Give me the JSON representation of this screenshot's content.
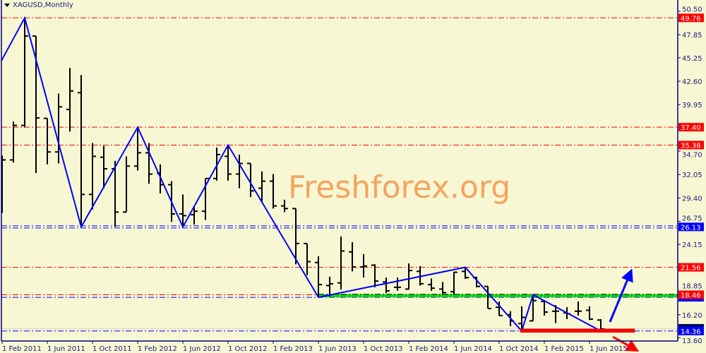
{
  "header": {
    "symbol_timeframe": "XAGUSD,Monthly"
  },
  "watermark": "Freshforex.org",
  "colors": {
    "background": "#f7f7d3",
    "axis": "#000080",
    "bars": "#000000",
    "zigzag": "#0000ff",
    "resistance": "#ff0000",
    "support": "#0000ff",
    "trendline": "#00e000"
  },
  "chart_data": {
    "type": "ohlc",
    "symbol": "XAGUSD",
    "timeframe": "Monthly",
    "ylim": [
      13.6,
      50.5
    ],
    "y_ticks": [
      "50.50",
      "47.85",
      "45.25",
      "42.60",
      "39.95",
      "34.70",
      "32.05",
      "29.40",
      "26.75",
      "24.15",
      "18.85",
      "16.20",
      "13.60"
    ],
    "x_ticks": [
      "1 Feb 2011",
      "1 Jun 2011",
      "1 Oct 2011",
      "1 Feb 2012",
      "1 Jun 2012",
      "1 Oct 2012",
      "1 Feb 2013",
      "1 Jun 2013",
      "1 Oct 2013",
      "1 Feb 2014",
      "1 Jun 2014",
      "1 Oct 2014",
      "1 Feb 2015",
      "1 Jun 2015"
    ],
    "bars": [
      [
        "2011-02",
        28.2,
        34.2,
        27.7,
        33.7
      ],
      [
        "2011-03",
        33.7,
        38.05,
        33.4,
        37.6
      ],
      [
        "2011-04",
        37.6,
        49.76,
        37.4,
        47.7
      ],
      [
        "2011-05",
        47.7,
        47.7,
        32.2,
        38.45
      ],
      [
        "2011-06",
        38.4,
        38.4,
        33.2,
        34.6
      ],
      [
        "2011-07",
        34.6,
        41.2,
        33.3,
        39.7
      ],
      [
        "2011-08",
        39.4,
        44.1,
        36.9,
        41.5
      ],
      [
        "2011-09",
        41.3,
        43.3,
        26.13,
        29.8
      ],
      [
        "2011-10",
        29.8,
        35.6,
        28.1,
        34.1
      ],
      [
        "2011-11",
        34.0,
        35.3,
        30.5,
        32.7
      ],
      [
        "2011-12",
        32.7,
        33.6,
        26.13,
        27.8
      ],
      [
        "2012-01",
        27.8,
        34.1,
        27.8,
        33.0
      ],
      [
        "2012-02",
        33.0,
        37.4,
        32.5,
        34.5
      ],
      [
        "2012-03",
        34.5,
        35.6,
        31.0,
        32.1
      ],
      [
        "2012-04",
        32.2,
        33.2,
        29.9,
        30.9
      ],
      [
        "2012-05",
        30.9,
        31.3,
        26.7,
        27.6
      ],
      [
        "2012-06",
        27.6,
        29.8,
        26.13,
        27.4
      ],
      [
        "2012-07",
        27.5,
        28.4,
        26.4,
        27.9
      ],
      [
        "2012-08",
        27.9,
        31.6,
        26.9,
        31.6
      ],
      [
        "2012-09",
        31.6,
        35.1,
        31.35,
        34.3
      ],
      [
        "2012-10",
        34.1,
        35.38,
        31.35,
        32.1
      ],
      [
        "2012-11",
        32.1,
        34.3,
        30.5,
        33.3
      ],
      [
        "2012-12",
        33.3,
        33.3,
        29.5,
        30.2
      ],
      [
        "2013-01",
        30.5,
        32.4,
        29.0,
        31.3
      ],
      [
        "2013-02",
        31.3,
        32.1,
        28.2,
        28.5
      ],
      [
        "2013-03",
        28.5,
        29.2,
        27.8,
        28.2
      ],
      [
        "2013-04",
        28.2,
        28.2,
        21.9,
        24.25
      ],
      [
        "2013-05",
        24.25,
        24.25,
        20.65,
        22.2
      ],
      [
        "2013-06",
        22.1,
        22.8,
        18.2,
        19.6
      ],
      [
        "2013-07",
        19.5,
        20.5,
        18.25,
        19.7
      ],
      [
        "2013-08",
        19.8,
        25.05,
        19.05,
        23.4
      ],
      [
        "2013-09",
        23.3,
        24.4,
        21.1,
        21.6
      ],
      [
        "2013-10",
        21.6,
        23.05,
        20.4,
        21.7
      ],
      [
        "2013-11",
        21.8,
        21.9,
        19.3,
        20.0
      ],
      [
        "2013-12",
        19.9,
        20.4,
        18.65,
        18.9
      ],
      [
        "2014-01",
        19.3,
        20.4,
        18.9,
        19.3
      ],
      [
        "2014-02",
        19.1,
        22.0,
        19.05,
        21.2
      ],
      [
        "2014-03",
        21.1,
        21.7,
        19.5,
        19.7
      ],
      [
        "2014-04",
        19.6,
        20.3,
        18.9,
        19.2
      ],
      [
        "2014-05",
        19.1,
        19.9,
        18.5,
        18.7
      ],
      [
        "2014-06",
        18.8,
        21.05,
        18.5,
        21.0
      ],
      [
        "2014-07",
        21.1,
        21.56,
        20.25,
        20.4
      ],
      [
        "2014-08",
        20.4,
        20.5,
        19.3,
        19.4
      ],
      [
        "2014-09",
        19.4,
        19.4,
        16.9,
        16.9
      ],
      [
        "2014-10",
        17.05,
        17.7,
        16.1,
        16.1
      ],
      [
        "2014-11",
        16.2,
        16.6,
        14.9,
        15.5
      ],
      [
        "2014-12",
        15.2,
        17.15,
        14.4,
        15.9
      ],
      [
        "2015-01",
        15.5,
        18.46,
        15.5,
        17.8
      ],
      [
        "2015-02",
        17.7,
        17.85,
        16.1,
        16.5
      ],
      [
        "2015-03",
        16.6,
        17.3,
        15.25,
        16.6
      ],
      [
        "2015-04",
        16.4,
        17.05,
        15.7,
        16.3
      ],
      [
        "2015-05",
        16.6,
        17.7,
        16.1,
        16.6
      ],
      [
        "2015-06",
        16.7,
        17.15,
        15.6,
        15.7
      ],
      [
        "2015-07",
        15.6,
        15.7,
        14.4,
        14.6
      ]
    ],
    "zigzag": [
      [
        "2011-01",
        42.7
      ],
      [
        "2011-04",
        49.76
      ],
      [
        "2011-09",
        26.13
      ],
      [
        "2012-02",
        37.4
      ],
      [
        "2012-06",
        26.13
      ],
      [
        "2012-10",
        35.38
      ],
      [
        "2013-06",
        18.17
      ],
      [
        "2014-07",
        21.56
      ],
      [
        "2014-12",
        14.36
      ],
      [
        "2015-01",
        18.46
      ],
      [
        "2015-07",
        14.36
      ]
    ],
    "levels": [
      {
        "price": 49.76,
        "label": "49.76",
        "color": "#ff0000",
        "style": "dash-dot"
      },
      {
        "price": 37.4,
        "label": "37.40",
        "color": "#ff0000",
        "style": "dash-dot"
      },
      {
        "price": 35.38,
        "label": "35.38",
        "color": "#ff0000",
        "style": "dash-dot"
      },
      {
        "price": 26.13,
        "label": "26.13",
        "color": "#0000ff",
        "style": "double-dash-dot"
      },
      {
        "price": 21.56,
        "label": "21.56",
        "color": "#ff0000",
        "style": "dash-dot"
      },
      {
        "price": 18.46,
        "label": "18.46",
        "color": "#ff0000",
        "style": "dash-dot"
      },
      {
        "price": 14.36,
        "label": "14.36",
        "color": "#0000ff",
        "style": "dash-dot"
      }
    ],
    "support_zone": {
      "price": 14.36,
      "from": "2014-12",
      "to": "2015-10",
      "color": "#ff0000"
    },
    "trendline": {
      "price": 18.35,
      "from": "2013-06",
      "color": "#00e000"
    }
  }
}
